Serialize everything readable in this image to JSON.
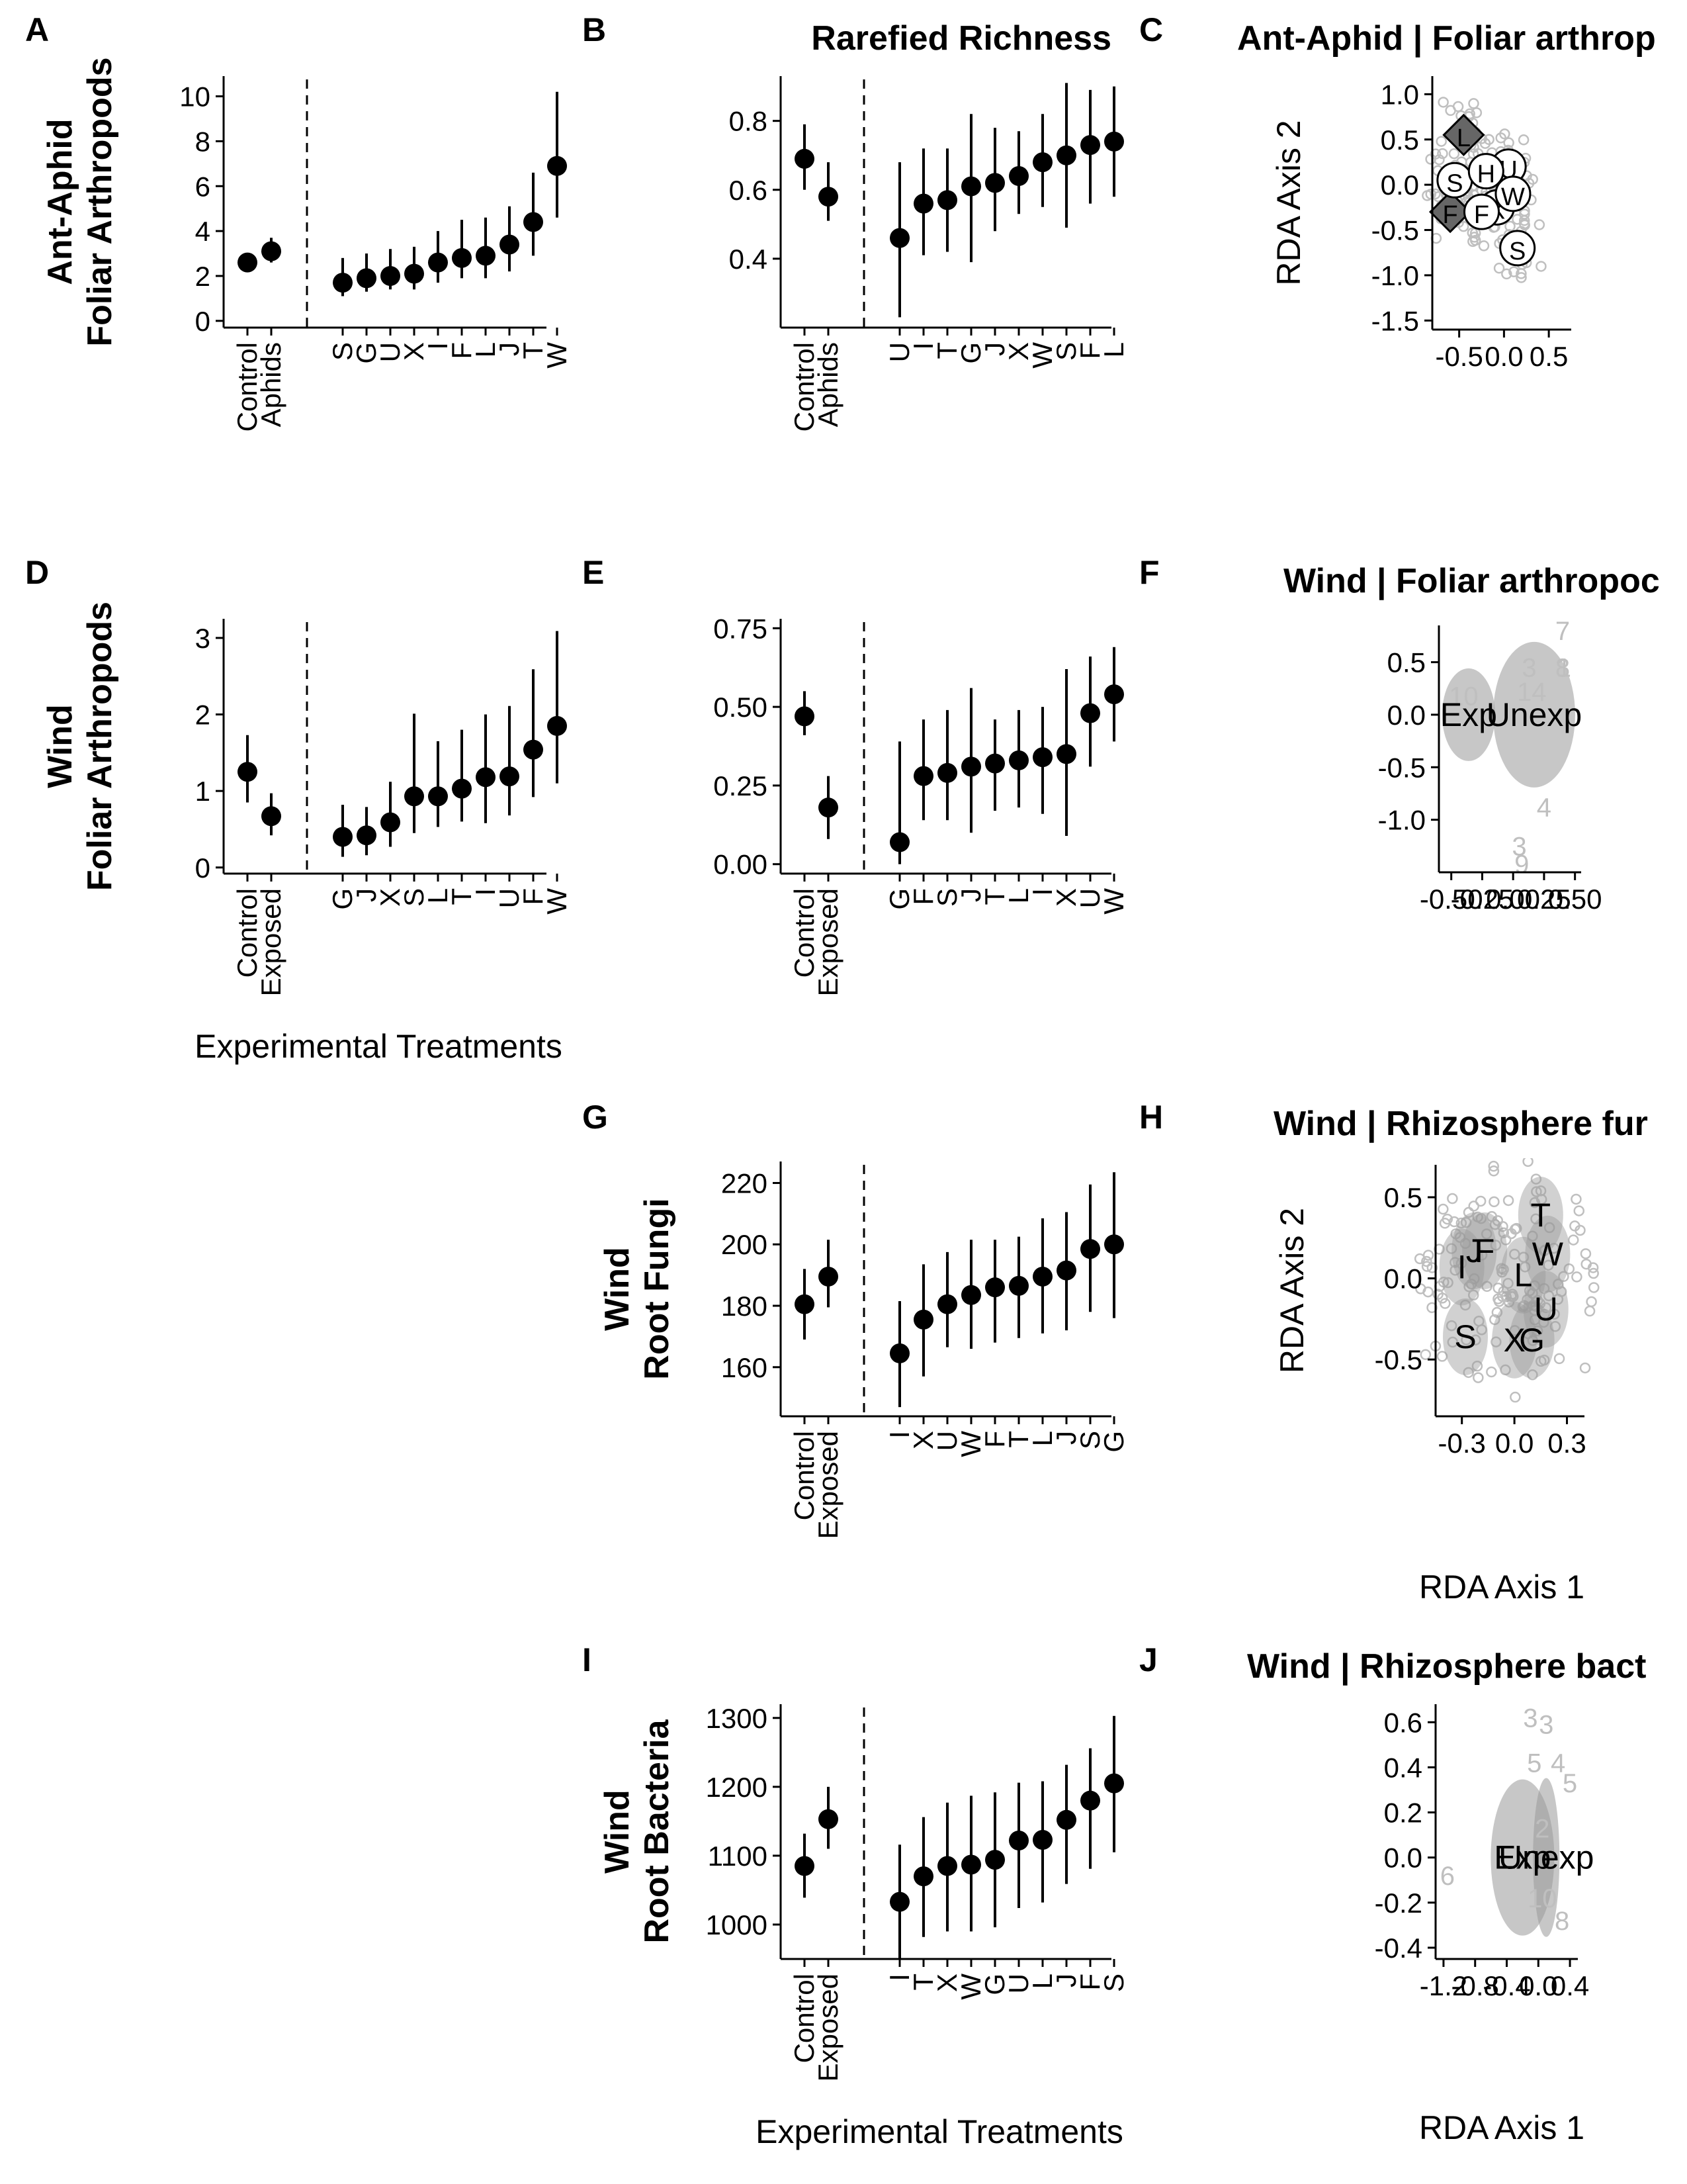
{
  "chart_data": [
    {
      "panel": "A",
      "type": "scatter",
      "title": "",
      "ylabel_lines": [
        "Ant-Aphid",
        "Foliar Arthropods"
      ],
      "xlabel": "",
      "ylim": [
        -0.3,
        10.9
      ],
      "yticks": [
        0,
        2,
        4,
        6,
        8,
        10
      ],
      "categories": [
        "Control",
        "Aphids",
        "S",
        "G",
        "U",
        "X",
        "I",
        "F",
        "L",
        "J",
        "T",
        "W"
      ],
      "values": [
        2.6,
        3.1,
        1.7,
        1.9,
        2.0,
        2.1,
        2.6,
        2.8,
        2.9,
        3.4,
        4.4,
        6.9
      ],
      "lower": [
        2.2,
        2.6,
        1.1,
        1.3,
        1.4,
        1.4,
        1.7,
        1.9,
        1.9,
        2.2,
        2.9,
        4.6
      ],
      "upper": [
        3.0,
        3.7,
        2.8,
        3.0,
        3.2,
        3.3,
        4.0,
        4.5,
        4.6,
        5.1,
        6.6,
        10.2
      ]
    },
    {
      "panel": "B",
      "type": "scatter",
      "title": "Rarefied Richness",
      "ylabel_lines": [],
      "xlabel": "",
      "ylim": [
        0.2,
        0.93
      ],
      "yticks": [
        0.4,
        0.6,
        0.8
      ],
      "categories": [
        "Control",
        "Aphids",
        "U",
        "I",
        "T",
        "G",
        "J",
        "X",
        "W",
        "S",
        "F",
        "L"
      ],
      "values": [
        0.69,
        0.58,
        0.46,
        0.56,
        0.57,
        0.61,
        0.62,
        0.64,
        0.68,
        0.7,
        0.73,
        0.74
      ],
      "lower": [
        0.6,
        0.51,
        0.23,
        0.41,
        0.42,
        0.39,
        0.48,
        0.53,
        0.55,
        0.49,
        0.56,
        0.58
      ],
      "upper": [
        0.79,
        0.68,
        0.68,
        0.72,
        0.72,
        0.82,
        0.78,
        0.77,
        0.82,
        0.91,
        0.89,
        0.9
      ]
    },
    {
      "panel": "C",
      "type": "scatter",
      "title": "Ant-Aphid | Foliar arthrop",
      "ylabel": "RDA Axis 2",
      "xlabel": "",
      "xlim": [
        -0.8,
        0.75
      ],
      "ylim": [
        -1.6,
        1.2
      ],
      "xticks": [
        -0.5,
        0.0,
        0.5
      ],
      "xtick_labels": [
        "-0.5",
        "0.0",
        "0.5"
      ],
      "yticks": [
        -1.5,
        -1.0,
        -0.5,
        0.0,
        0.5,
        1.0
      ],
      "ytick_labels": [
        "-1.5",
        "-1.0",
        "-0.5",
        "0.0",
        "0.5",
        "1.0"
      ],
      "centroids": [
        {
          "label": "L",
          "x": -0.45,
          "y": 0.55,
          "shape": "diamond"
        },
        {
          "label": "F",
          "x": -0.6,
          "y": -0.3,
          "shape": "diamond"
        },
        {
          "label": "S",
          "x": -0.55,
          "y": 0.05,
          "shape": "circle"
        },
        {
          "label": "X",
          "x": -0.08,
          "y": -0.25,
          "shape": "circle"
        },
        {
          "label": "F",
          "x": -0.25,
          "y": -0.3,
          "shape": "circle"
        },
        {
          "label": "U",
          "x": 0.05,
          "y": 0.2,
          "shape": "circle"
        },
        {
          "label": "H",
          "x": -0.2,
          "y": 0.15,
          "shape": "circle"
        },
        {
          "label": "W",
          "x": 0.1,
          "y": -0.1,
          "shape": "circle"
        },
        {
          "label": "S",
          "x": 0.15,
          "y": -0.7,
          "shape": "circle"
        }
      ]
    },
    {
      "panel": "D",
      "type": "scatter",
      "title": "",
      "ylabel_lines": [
        "Wind",
        "Foliar Arthropods"
      ],
      "xlabel": "Experimental Treatments",
      "ylim": [
        -0.08,
        3.25
      ],
      "yticks": [
        0,
        1,
        2,
        3
      ],
      "categories": [
        "Control",
        "Exposed",
        "G",
        "J",
        "X",
        "S",
        "L",
        "T",
        "I",
        "U",
        "F",
        "W"
      ],
      "values": [
        1.25,
        0.67,
        0.4,
        0.42,
        0.59,
        0.93,
        0.93,
        1.03,
        1.18,
        1.19,
        1.54,
        1.85
      ],
      "lower": [
        0.85,
        0.42,
        0.14,
        0.16,
        0.27,
        0.45,
        0.53,
        0.6,
        0.58,
        0.68,
        0.92,
        1.1
      ],
      "upper": [
        1.73,
        0.97,
        0.82,
        0.79,
        1.12,
        2.01,
        1.65,
        1.8,
        2.0,
        2.11,
        2.59,
        3.09
      ]
    },
    {
      "panel": "E",
      "type": "scatter",
      "title": "",
      "ylabel_lines": [],
      "xlabel": "",
      "ylim": [
        -0.03,
        0.78
      ],
      "yticks": [
        0.0,
        0.25,
        0.5,
        0.75
      ],
      "ytick_labels": [
        "0.00",
        "0.25",
        "0.50",
        "0.75"
      ],
      "categories": [
        "Control",
        "Exposed",
        "G",
        "F",
        "S",
        "J",
        "T",
        "L",
        "I",
        "X",
        "U",
        "W"
      ],
      "values": [
        0.47,
        0.18,
        0.07,
        0.28,
        0.29,
        0.31,
        0.32,
        0.33,
        0.34,
        0.35,
        0.48,
        0.54
      ],
      "lower": [
        0.41,
        0.08,
        0.0,
        0.14,
        0.14,
        0.1,
        0.17,
        0.18,
        0.16,
        0.09,
        0.31,
        0.39
      ],
      "upper": [
        0.55,
        0.28,
        0.39,
        0.46,
        0.49,
        0.56,
        0.46,
        0.49,
        0.5,
        0.62,
        0.66,
        0.69
      ]
    },
    {
      "panel": "F",
      "type": "scatter",
      "title": "Wind | Foliar arthropoc",
      "ylabel": "",
      "xlabel": "",
      "xlim": [
        -0.6,
        0.55
      ],
      "ylim": [
        -1.5,
        0.85
      ],
      "xticks": [
        -0.5,
        -0.25,
        0.0,
        0.25,
        0.5
      ],
      "xtick_labels": [
        "-0.50",
        "-0.25",
        "0.00",
        "0.25",
        "0.50"
      ],
      "yticks": [
        -1.0,
        -0.5,
        0.0,
        0.5
      ],
      "ytick_labels": [
        "-1.0",
        "-0.5",
        "0.0",
        "0.5"
      ],
      "centroids": [
        {
          "label": "Exp",
          "x": -0.36,
          "y": 0.0
        },
        {
          "label": "Unexp",
          "x": 0.17,
          "y": 0.0
        }
      ],
      "point_labels": [
        {
          "label": "7",
          "x": 0.4,
          "y": 0.8
        },
        {
          "label": "3",
          "x": 0.13,
          "y": 0.45
        },
        {
          "label": "8",
          "x": 0.4,
          "y": 0.45
        },
        {
          "label": "1",
          "x": 0.41,
          "y": 0.45
        },
        {
          "label": "14",
          "x": 0.15,
          "y": 0.22
        },
        {
          "label": "10",
          "x": -0.4,
          "y": 0.18
        },
        {
          "label": "4",
          "x": 0.25,
          "y": -0.88
        },
        {
          "label": "3",
          "x": 0.05,
          "y": -1.25
        },
        {
          "label": "9",
          "x": 0.07,
          "y": -1.42
        }
      ]
    },
    {
      "panel": "G",
      "type": "scatter",
      "title": "",
      "ylabel_lines": [
        "Wind",
        "Root Fungi"
      ],
      "xlabel": "",
      "ylim": [
        144,
        227
      ],
      "yticks": [
        160,
        180,
        200,
        220
      ],
      "categories": [
        "Control",
        "Exposed",
        "I",
        "X",
        "U",
        "W",
        "F",
        "T",
        "L",
        "J",
        "S",
        "G"
      ],
      "values": [
        180.5,
        189.5,
        164.5,
        175.5,
        180.5,
        183.5,
        186,
        186.5,
        189.5,
        191.5,
        198.5,
        200
      ],
      "lower": [
        169,
        179.5,
        147,
        157,
        166.5,
        166,
        168,
        169.5,
        171,
        172,
        178,
        176
      ],
      "upper": [
        192,
        201.5,
        181.5,
        193.5,
        197.5,
        201.5,
        201.5,
        202.5,
        208.5,
        210.5,
        219.5,
        223.5
      ]
    },
    {
      "panel": "H",
      "type": "scatter",
      "title": "Wind | Rhizosphere fur",
      "ylabel": "RDA Axis 2",
      "xlabel": "RDA Axis 1",
      "xlim": [
        -0.45,
        0.4
      ],
      "ylim": [
        -0.85,
        0.7
      ],
      "xticks": [
        -0.3,
        0.0,
        0.3
      ],
      "xtick_labels": [
        "-0.3",
        "0.0",
        "0.3"
      ],
      "yticks": [
        -0.5,
        0.0,
        0.5
      ],
      "ytick_labels": [
        "-0.5",
        "0.0",
        "0.5"
      ],
      "centroids": [
        {
          "label": "T",
          "x": 0.15,
          "y": 0.39
        },
        {
          "label": "J",
          "x": -0.23,
          "y": 0.17
        },
        {
          "label": "F",
          "x": -0.17,
          "y": 0.17
        },
        {
          "label": "W",
          "x": 0.19,
          "y": 0.15
        },
        {
          "label": "I",
          "x": -0.3,
          "y": 0.07
        },
        {
          "label": "L",
          "x": 0.05,
          "y": 0.02
        },
        {
          "label": "U",
          "x": 0.18,
          "y": -0.19
        },
        {
          "label": "S",
          "x": -0.28,
          "y": -0.36
        },
        {
          "label": "X",
          "x": 0.0,
          "y": -0.38
        },
        {
          "label": "G",
          "x": 0.1,
          "y": -0.38
        }
      ]
    },
    {
      "panel": "I",
      "type": "scatter",
      "title": "",
      "ylabel_lines": [
        "Wind",
        "Root Bacteria"
      ],
      "xlabel": "Experimental Treatments",
      "ylim": [
        950,
        1320
      ],
      "yticks": [
        1000,
        1100,
        1200,
        1300
      ],
      "categories": [
        "Control",
        "Exposed",
        "I",
        "T",
        "X",
        "W",
        "G",
        "U",
        "L",
        "J",
        "F",
        "S"
      ],
      "values": [
        1085,
        1153,
        1033,
        1070,
        1085,
        1087,
        1094,
        1122,
        1123,
        1152,
        1180,
        1205
      ],
      "lower": [
        1039,
        1110,
        950,
        982,
        990,
        990,
        996,
        1024,
        1032,
        1059,
        1081,
        1105
      ],
      "upper": [
        1132,
        1200,
        1116,
        1156,
        1177,
        1187,
        1192,
        1206,
        1208,
        1232,
        1256,
        1303
      ]
    },
    {
      "panel": "J",
      "type": "scatter",
      "title": "Wind | Rhizosphere bact",
      "ylabel": "",
      "xlabel": "RDA Axis 1",
      "xlim": [
        -1.3,
        0.5
      ],
      "ylim": [
        -0.45,
        0.68
      ],
      "xticks": [
        -1.2,
        -0.8,
        -0.4,
        0.0,
        0.4
      ],
      "xtick_labels": [
        "-1.2",
        "-0.8",
        "-0.4",
        "0.0",
        "0.4"
      ],
      "yticks": [
        -0.4,
        -0.2,
        0.0,
        0.2,
        0.4,
        0.6
      ],
      "ytick_labels": [
        "-0.4",
        "-0.2",
        "0.0",
        "0.2",
        "0.4",
        "0.6"
      ],
      "centroids": [
        {
          "label": "Exp",
          "x": -0.2,
          "y": 0.0
        },
        {
          "label": "Unexp",
          "x": 0.1,
          "y": 0.0
        }
      ],
      "point_labels": [
        {
          "label": "3",
          "x": -0.1,
          "y": 0.62
        },
        {
          "label": "3",
          "x": 0.1,
          "y": 0.59
        },
        {
          "label": "5",
          "x": -0.05,
          "y": 0.42
        },
        {
          "label": "4",
          "x": 0.25,
          "y": 0.42
        },
        {
          "label": "5",
          "x": 0.4,
          "y": 0.33
        },
        {
          "label": "2",
          "x": 0.05,
          "y": 0.13
        },
        {
          "label": "6",
          "x": -1.15,
          "y": -0.08
        },
        {
          "label": "10",
          "x": 0.05,
          "y": -0.18
        },
        {
          "label": "8",
          "x": 0.3,
          "y": -0.28
        }
      ]
    }
  ],
  "figure": {
    "panel_letters": [
      "A",
      "B",
      "C",
      "D",
      "E",
      "F",
      "G",
      "H",
      "I",
      "J"
    ],
    "point_color": "#000000",
    "ordination_fill": "#999999",
    "ordination_point_color": "#bfbfbf"
  }
}
